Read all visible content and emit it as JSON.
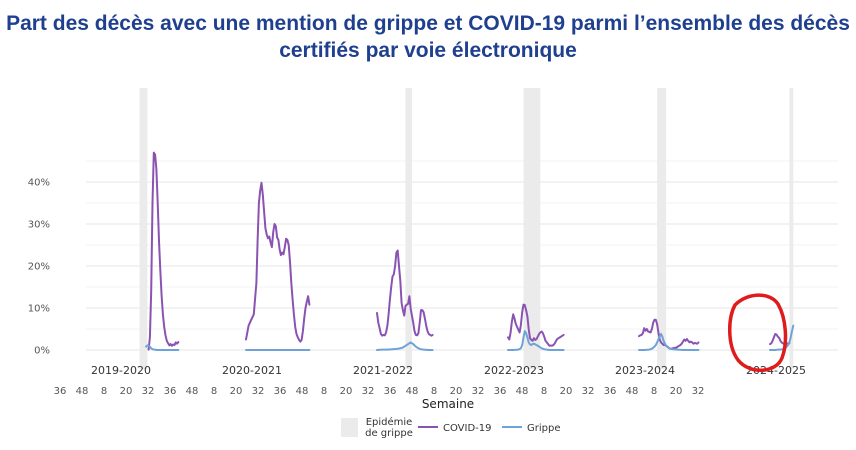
{
  "title": "Part des décès avec une mention de grippe et COVID-19 parmi l’ensemble des décès certifiés par voie électronique",
  "chart_data": {
    "type": "line",
    "title": "Part des décès avec une mention de grippe et COVID-19 parmi l’ensemble des décès certifiés par voie électronique",
    "xlabel": "Semaine",
    "ylabel": "",
    "ylim": [
      0,
      0.5
    ],
    "yticks": [
      0,
      0.1,
      0.2,
      0.3,
      0.4
    ],
    "ytick_labels": [
      "0%",
      "10%",
      "20%",
      "30%",
      "40%"
    ],
    "x_tick_labels": [
      "36",
      "48",
      "8",
      "20",
      "32",
      "36",
      "48",
      "8",
      "20",
      "32",
      "36",
      "48",
      "8",
      "20",
      "32",
      "36",
      "48",
      "8",
      "20",
      "32",
      "36",
      "48",
      "8",
      "20",
      "32",
      "36",
      "48",
      "8",
      "20",
      "32"
    ],
    "grid": true,
    "legend": "bottom",
    "legend_entries": [
      {
        "label": "Epidémie\nde grippe",
        "kind": "band",
        "color": "#ebebeb"
      },
      {
        "label": "COVID-19",
        "kind": "line",
        "color": "#8a53b2"
      },
      {
        "label": "Grippe",
        "kind": "line",
        "color": "#6fa3d8"
      }
    ],
    "panels": [
      {
        "label": "2019-2020",
        "epidemic_weeks": [
          3,
          9
        ],
        "series": [
          {
            "name": "COVID-19",
            "x": [
              10,
              11,
              12,
              13,
              14,
              15,
              16,
              17,
              18,
              19,
              20,
              21,
              22,
              23,
              24,
              25,
              26,
              27,
              28,
              29,
              30,
              31,
              32,
              33
            ],
            "values": [
              0.001,
              0.03,
              0.14,
              0.35,
              0.47,
              0.465,
              0.43,
              0.35,
              0.26,
              0.19,
              0.13,
              0.085,
              0.055,
              0.035,
              0.022,
              0.016,
              0.011,
              0.014,
              0.01,
              0.013,
              0.012,
              0.018,
              0.015,
              0.019
            ]
          },
          {
            "name": "Grippe",
            "x": [
              8,
              9,
              10,
              11,
              12,
              13,
              14,
              15,
              16,
              17,
              18,
              19,
              20,
              21,
              22,
              23,
              24,
              25,
              26,
              27,
              28,
              29,
              30,
              31,
              32,
              33
            ],
            "values": [
              0.008,
              0.011,
              0.01,
              0.008,
              0.004,
              0.002,
              0.001,
              0.001,
              0.0,
              0.0,
              0.0,
              0.0,
              0.0,
              0.0,
              0.0,
              0.0,
              0.0,
              0.0,
              0.0,
              0.0,
              0.0,
              0.0,
              0.0,
              0.0,
              0.0,
              0.0
            ]
          }
        ]
      },
      {
        "label": "2020-2021",
        "epidemic_weeks": null,
        "series": [
          {
            "name": "COVID-19",
            "x": [
              36,
              38,
              40,
              42,
              44,
              45,
              46,
              47,
              48,
              49,
              50,
              51,
              52,
              1,
              2,
              3,
              4,
              5,
              6,
              7,
              8,
              9,
              10,
              11,
              12,
              13,
              14,
              15,
              16,
              17,
              18,
              19,
              20,
              21,
              22,
              23,
              24,
              25,
              26,
              27,
              28,
              29,
              30,
              31,
              32,
              33
            ],
            "values": [
              0.025,
              0.058,
              0.072,
              0.085,
              0.16,
              0.26,
              0.35,
              0.38,
              0.398,
              0.37,
              0.33,
              0.29,
              0.275,
              0.266,
              0.27,
              0.256,
              0.245,
              0.28,
              0.3,
              0.295,
              0.268,
              0.262,
              0.24,
              0.226,
              0.232,
              0.228,
              0.245,
              0.265,
              0.262,
              0.25,
              0.21,
              0.16,
              0.12,
              0.085,
              0.055,
              0.038,
              0.03,
              0.024,
              0.02,
              0.024,
              0.045,
              0.075,
              0.1,
              0.115,
              0.128,
              0.108
            ]
          },
          {
            "name": "Grippe",
            "x": [
              36,
              52,
              10,
              33
            ],
            "values": [
              0.0,
              0.0,
              0.0,
              0.0
            ]
          }
        ]
      },
      {
        "label": "2021-2022",
        "epidemic_weeks": [
          6,
          11
        ],
        "series": [
          {
            "name": "COVID-19",
            "x": [
              36,
              37,
              38,
              39,
              40,
              41,
              42,
              43,
              44,
              45,
              46,
              47,
              48,
              49,
              50,
              51,
              52,
              1,
              2,
              3,
              4,
              5,
              6,
              7,
              8,
              9,
              10,
              11,
              12,
              13,
              14,
              15,
              16,
              17,
              18,
              19,
              20,
              21,
              22,
              23,
              24,
              25,
              26,
              27
            ],
            "values": [
              0.088,
              0.065,
              0.052,
              0.038,
              0.034,
              0.036,
              0.035,
              0.042,
              0.058,
              0.085,
              0.12,
              0.15,
              0.175,
              0.18,
              0.2,
              0.232,
              0.237,
              0.2,
              0.165,
              0.112,
              0.095,
              0.082,
              0.105,
              0.108,
              0.11,
              0.128,
              0.1,
              0.082,
              0.065,
              0.045,
              0.036,
              0.035,
              0.04,
              0.065,
              0.095,
              0.095,
              0.09,
              0.075,
              0.058,
              0.045,
              0.038,
              0.036,
              0.034,
              0.036
            ]
          },
          {
            "name": "Grippe",
            "x": [
              36,
              40,
              44,
              48,
              52,
              2,
              4,
              6,
              8,
              10,
              12,
              14,
              16,
              18,
              20,
              24,
              27
            ],
            "values": [
              0.0,
              0.001,
              0.001,
              0.002,
              0.003,
              0.004,
              0.006,
              0.01,
              0.014,
              0.018,
              0.014,
              0.008,
              0.004,
              0.002,
              0.001,
              0.0,
              0.0
            ]
          }
        ]
      },
      {
        "label": "2022-2023",
        "epidemic_weeks": [
          48,
          9
        ],
        "series": [
          {
            "name": "COVID-19",
            "x": [
              36,
              37,
              38,
              39,
              40,
              41,
              42,
              43,
              44,
              45,
              46,
              47,
              48,
              49,
              50,
              51,
              52,
              1,
              2,
              3,
              4,
              5,
              6,
              7,
              8,
              9,
              10,
              11,
              12,
              13,
              14,
              15,
              16,
              17,
              18,
              19,
              20,
              21,
              22,
              23,
              24,
              25,
              26,
              27
            ],
            "values": [
              0.03,
              0.025,
              0.042,
              0.068,
              0.085,
              0.075,
              0.062,
              0.055,
              0.048,
              0.042,
              0.06,
              0.09,
              0.108,
              0.107,
              0.095,
              0.08,
              0.05,
              0.028,
              0.024,
              0.022,
              0.028,
              0.024,
              0.026,
              0.032,
              0.038,
              0.042,
              0.044,
              0.04,
              0.032,
              0.022,
              0.018,
              0.014,
              0.01,
              0.011,
              0.01,
              0.012,
              0.015,
              0.021,
              0.026,
              0.028,
              0.03,
              0.032,
              0.034,
              0.036
            ]
          },
          {
            "name": "Grippe",
            "x": [
              36,
              40,
              44,
              46,
              47,
              48,
              49,
              50,
              51,
              52,
              1,
              2,
              3,
              4,
              6,
              8,
              10,
              12,
              14,
              16,
              20,
              27
            ],
            "values": [
              0.0,
              0.0,
              0.001,
              0.004,
              0.012,
              0.03,
              0.045,
              0.04,
              0.03,
              0.018,
              0.013,
              0.012,
              0.014,
              0.015,
              0.012,
              0.008,
              0.004,
              0.002,
              0.001,
              0.0,
              0.0,
              0.0
            ]
          }
        ]
      },
      {
        "label": "2023-2024",
        "epidemic_weeks": [
          50,
          5
        ],
        "series": [
          {
            "name": "COVID-19",
            "x": [
              36,
              37,
              38,
              39,
              40,
              41,
              42,
              43,
              44,
              45,
              46,
              47,
              48,
              49,
              50,
              51,
              52,
              1,
              2,
              3,
              4,
              5,
              6,
              7,
              8,
              9,
              10,
              11,
              12,
              13,
              14,
              15,
              16,
              17,
              18,
              19,
              20,
              21,
              22,
              23,
              24,
              25,
              26,
              27,
              28,
              29,
              30
            ],
            "values": [
              0.033,
              0.035,
              0.036,
              0.04,
              0.052,
              0.046,
              0.05,
              0.044,
              0.043,
              0.042,
              0.05,
              0.065,
              0.072,
              0.072,
              0.062,
              0.042,
              0.025,
              0.018,
              0.015,
              0.012,
              0.012,
              0.01,
              0.008,
              0.005,
              0.003,
              0.003,
              0.004,
              0.005,
              0.005,
              0.006,
              0.008,
              0.01,
              0.012,
              0.015,
              0.02,
              0.025,
              0.022,
              0.026,
              0.022,
              0.018,
              0.02,
              0.018,
              0.015,
              0.017,
              0.016,
              0.015,
              0.018
            ]
          },
          {
            "name": "Grippe",
            "x": [
              36,
              40,
              44,
              46,
              48,
              49,
              50,
              51,
              52,
              1,
              2,
              3,
              4,
              5,
              6,
              7,
              8,
              10,
              14,
              18,
              22,
              26,
              30
            ],
            "values": [
              0.0,
              0.0,
              0.001,
              0.003,
              0.008,
              0.012,
              0.018,
              0.025,
              0.032,
              0.038,
              0.032,
              0.022,
              0.015,
              0.01,
              0.007,
              0.005,
              0.003,
              0.002,
              0.001,
              0.0,
              0.0,
              0.0,
              0.0
            ]
          }
        ]
      },
      {
        "label": "2024-2025",
        "epidemic_weeks": [
          51,
          2
        ],
        "series": [
          {
            "name": "COVID-19",
            "x": [
              36,
              37,
              38,
              39,
              40,
              41,
              42,
              43,
              44,
              45,
              46,
              47,
              48,
              49,
              50,
              51
            ],
            "values": [
              0.014,
              0.016,
              0.022,
              0.03,
              0.038,
              0.037,
              0.032,
              0.029,
              0.022,
              0.018,
              0.016,
              0.014,
              0.013,
              0.015,
              0.016,
              0.016
            ]
          },
          {
            "name": "Grippe",
            "x": [
              36,
              38,
              40,
              42,
              44,
              46,
              47,
              48,
              49,
              50,
              51,
              52,
              1,
              2
            ],
            "values": [
              0.0,
              0.0,
              0.0,
              0.001,
              0.001,
              0.002,
              0.003,
              0.005,
              0.008,
              0.012,
              0.018,
              0.03,
              0.045,
              0.058
            ]
          }
        ]
      }
    ]
  }
}
